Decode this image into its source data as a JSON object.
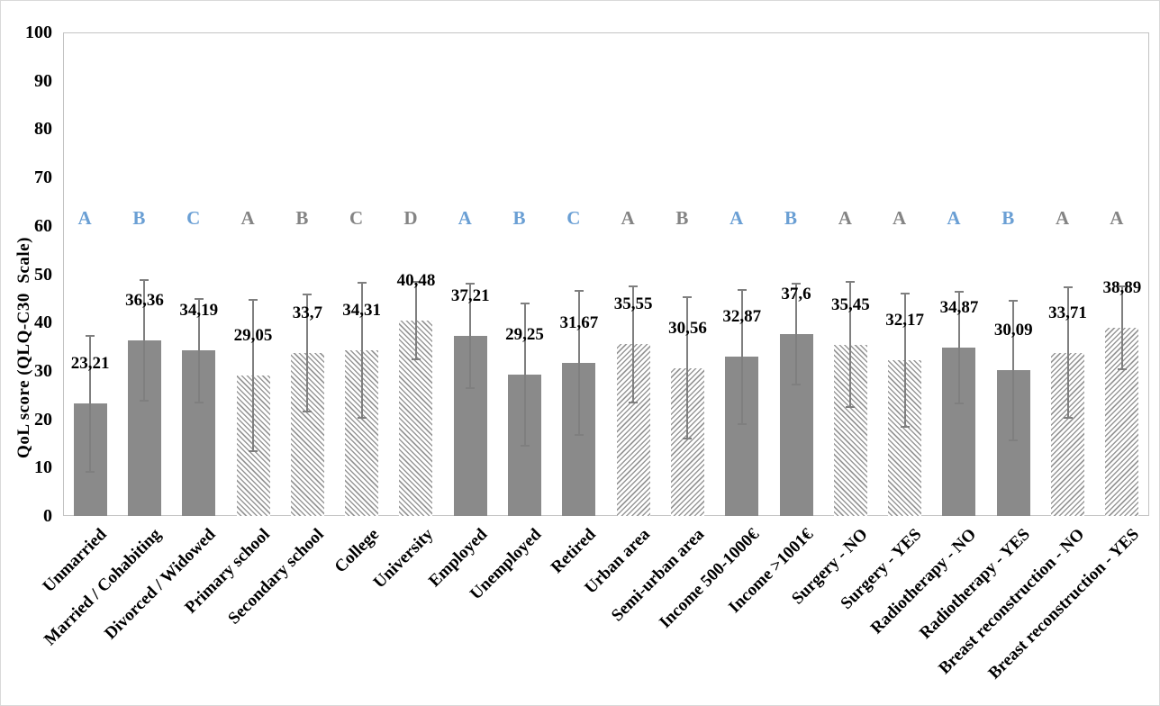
{
  "chart_data": {
    "type": "bar",
    "title": "",
    "xlabel": "",
    "ylabel": "QoL score (QLQ-C30  Scale)",
    "ylim": [
      0,
      100
    ],
    "ytick_step": 10,
    "yticks": [
      0,
      10,
      20,
      30,
      40,
      50,
      60,
      70,
      80,
      90,
      100
    ],
    "grid": false,
    "legend_position": "none",
    "categories": [
      "Unmarried",
      "Married / Cohabiting",
      "Divorced / Widowed",
      "Primary school",
      "Secondary school",
      "College",
      "University",
      "Employed",
      "Unemployed",
      "Retired",
      "Urban area",
      "Semi-urban area",
      "Income 500-1000€",
      "Income >1001€",
      "Surgery - NO",
      "Surgery - YES",
      "Radiotherapy - NO",
      "Radiotherapy - YES",
      "Breast reconstruction - NO",
      "Breast reconstruction - YES"
    ],
    "values": [
      23.21,
      36.36,
      34.19,
      29.05,
      33.7,
      34.31,
      40.48,
      37.21,
      29.25,
      31.67,
      35.55,
      30.56,
      32.87,
      37.6,
      35.45,
      32.17,
      34.87,
      30.09,
      33.71,
      38.89
    ],
    "value_labels": [
      "23,21",
      "36,36",
      "34,19",
      "29,05",
      "33,7",
      "34,31",
      "40,48",
      "37,21",
      "29,25",
      "31,67",
      "35,55",
      "30,56",
      "32,87",
      "37,6",
      "35,45",
      "32,17",
      "34,87",
      "30,09",
      "33,71",
      "38,89"
    ],
    "errors": [
      14.0,
      12.5,
      10.7,
      15.7,
      12.1,
      14.0,
      8.0,
      10.8,
      14.7,
      14.9,
      12.0,
      14.6,
      13.8,
      10.4,
      12.9,
      13.8,
      11.5,
      14.4,
      13.5,
      8.6
    ],
    "significance_letters": [
      "A",
      "B",
      "C",
      "A",
      "B",
      "C",
      "D",
      "A",
      "B",
      "C",
      "A",
      "B",
      "A",
      "B",
      "A",
      "A",
      "A",
      "B",
      "A",
      "A"
    ],
    "letter_styles": [
      "blue",
      "blue",
      "blue",
      "gray",
      "gray",
      "gray",
      "gray",
      "blue",
      "blue",
      "blue",
      "gray",
      "gray",
      "blue",
      "blue",
      "gray",
      "gray",
      "blue",
      "blue",
      "gray",
      "gray"
    ],
    "bar_fills": [
      "solid",
      "solid",
      "solid",
      "hatch-down",
      "hatch-down",
      "hatch-down",
      "hatch-down",
      "solid",
      "solid",
      "solid",
      "hatch-up",
      "hatch-up",
      "solid",
      "solid",
      "hatch-down",
      "hatch-down",
      "solid",
      "solid",
      "hatch-up",
      "hatch-up"
    ]
  },
  "colors": {
    "solid_bar": "#8a8a8a",
    "hatch_stripe": "#979797",
    "hatch_background": "#ffffff",
    "error_bar": "#7f7f7f",
    "axis_frame": "#c3c3c3",
    "letter_blue": "#6a9fd4",
    "letter_gray": "#848484",
    "text": "#000000"
  }
}
